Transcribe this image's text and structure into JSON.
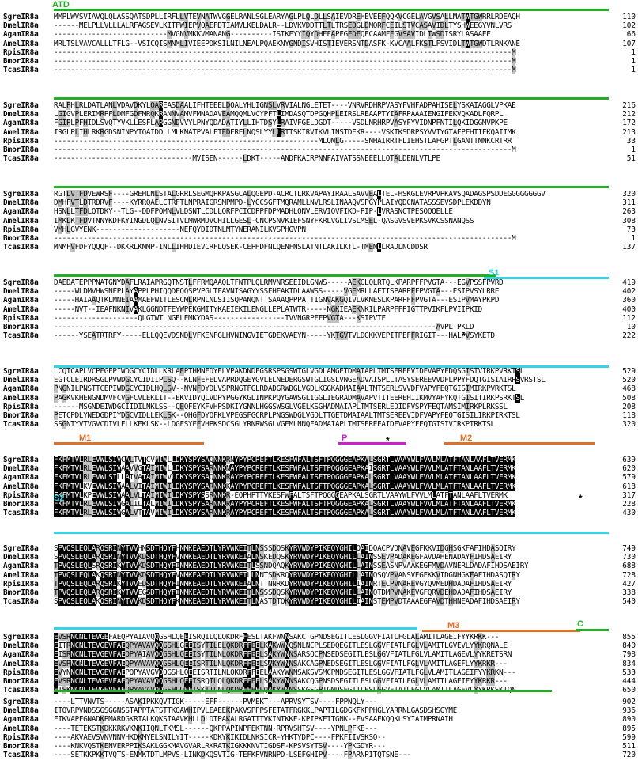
{
  "colors": {
    "green": "#22b022",
    "cyan": "#33d6e6",
    "orange": "#e0712a",
    "magenta": "#cc22cc",
    "black_box": "#000000",
    "gray_box": "#c0c0c0"
  },
  "domains": {
    "ATD": "ATD",
    "S1": "S1",
    "P": "P",
    "M1": "M1",
    "M2": "M2",
    "S2": "S2",
    "M3": "M3",
    "C": "C"
  },
  "star": "*",
  "blocks": [
    {
      "rows": [
        {
          "name": "SgreIR8a",
          "seq": "MMPLWVSVIAVQLQLASSQATSDPLLIRFLLVTEVNATWVGGELRANLSGLEARYAGLPLQLDLLSAIEVDREHEVEEFQQKVCGELAVGVSALLMATWTGWRRLRDEAQH",
          "num": "110"
        },
        {
          "name": "DmelIR8a",
          "seq": "------MELPLLVLLLALRFAGSEVLKITFWIEPVQAEFDTIAMVLKELDALR--LDVKVDDTTLTLTRSEDGLDMQRFCEILSTVCASAVIDLTYSHWEEGYVNLVRS",
          "num": "102"
        },
        {
          "name": "AgamIR8a",
          "seq": "---------------------------MVGNVMKKVMANANG----------ISIKEYYIQYDHEFAPFGEDEQFCAAMFEGVSAVIDLTWSDISRYLASAAEE",
          "num": "66"
        },
        {
          "name": "AmelIR8a",
          "seq": "MRLTSLVAVCALLLTFLG--VSICQISMNMLIVIEEPDKSILNILNEALPQAEKNYGNDISVHISTIEVERSNTDASFK-KVCAALFKSTLFSVIDLTWTGWDTLRNKANE",
          "num": "107"
        },
        {
          "name": "RpisIR8a",
          "seq": "-------------------------------------------------------------------------------------------------------------M",
          "num": "1"
        },
        {
          "name": "BmorIR8a",
          "seq": "-------------------------------------------------------------------------------------------------------------M",
          "num": "1"
        },
        {
          "name": "TcasIR8a",
          "seq": "-------------------------------------------------------------------------------------------------------------M",
          "num": "1"
        }
      ]
    },
    {
      "rows": [
        {
          "name": "SgreIR8a",
          "seq": "RALPHLRLDATLANLVDAVDKYLQAREASDAALIFHTEEELDQALYHLIGNSLVRVIALNGLETET----VNRVRDHRPVASYFVHFADPAHISELYSKAIAGGLVPKAE",
          "num": "216"
        },
        {
          "name": "DmelIR8a",
          "seq": "LGIGVPLERIMRPFLDMFGDFMRQKRANNVAMVFMNADAVEAMQQMLVCYPFTLIMDASQTDPGQHPLEIRSLREAAPTYIAFRPAAAIENGIFEKVQKADLFQRPL",
          "num": "212"
        },
        {
          "name": "AgamIR8a",
          "seq": "FGIPLPFHIDLSVQTYVKLLESFLARGGNDVVYLPNYQDADATIYLLIHTDSYLRAIVFGELDGDT-----VSDLNRHRPVASYFYVIDNPFNTILQKIDGGMVPKPE",
          "num": "172"
        },
        {
          "name": "AmelIR8a",
          "seq": "IRGLPLIHLRKRGDSNINPYIQAIDDLLMLKNATPVALFTEDERELNQSLYYLLRTTSKIRVIKVLINSTDEKR----VSKIKSDRPSYVVIYGTAEPFHTIFKQAIIMK",
          "num": "213"
        },
        {
          "name": "RpisIR8a",
          "seq": "---------------------------------------------------------------MLQNLG-----SNHAIRRTFLIEHSTLAFGPTLGANTTNNKCRTRR",
          "num": "33"
        },
        {
          "name": "BmorIR8a",
          "seq": "-------------------------------------------------------------------------------------------------------------M",
          "num": "1"
        },
        {
          "name": "TcasIR8a",
          "seq": "---------------------------------MVISEN------LDKT-----ANDFKAIRPNNFAIVATSSNEEELLQTALDENLVTLPE",
          "num": "51"
        }
      ]
    },
    {
      "rows": [
        {
          "name": "SgreIR8a",
          "seq": "RGTLVTFDVEWRSF----GREHLNLSTALGRRLSEGMQPKPASGCALQGEPD-ACRCTLRKVAPAYIRAALSAVVEALTEL-HSKGLEVRPVPKAVSQADAGSPSDDEGGGGGGGGV",
          "num": "320"
        },
        {
          "name": "DmelIR8a",
          "seq": "DMHFVTLDTRDRVF----KYRRQAELCTRFTLNPRAIGRSMPMPD-LYGCSGFTMQRAMLLNVLRSLINAAQVSPGYPLAIYQDCNATASSSEVSDPLEKDDYN",
          "num": "311"
        },
        {
          "name": "AgamIR8a",
          "seq": "HSNLLTFDLQTDKY--TLG--DDFPQMNLVLDSNTLCDLLQRFPCICDPPFDPMADHLQNVLERVIQVFIKD-PIP-LVRASNCTPESQQQELLE",
          "num": "263"
        },
        {
          "name": "AmelIR8a",
          "seq": "IMKLKTFDVTNNYKDFKYINGDLQLNVSITVLMWRMDVCHILLGESL-CNCPSNVKIEFSNYFKRLVGLIVSLMSEL-QASGVSVEPKSVKCSSNANQSS",
          "num": "308"
        },
        {
          "name": "RpisIR8a",
          "seq": "VMHLGVYENK--------------------NEFQYDIDTNLMTYNERANILKVSPHGVPN",
          "num": "73"
        },
        {
          "name": "BmorIR8a",
          "seq": "-------------------------------------------------------------------------------------------------------------M",
          "num": "1"
        },
        {
          "name": "TcasIR8a",
          "seq": "MNMFVFDFYQQQF--DKKRLKNMP-INLLIHHDIEVCRFLQSEK-CEPHDFNLQENFNSLATNTLAKILKTL-TMENLLRADLNCDDSR",
          "num": "137"
        }
      ]
    },
    {
      "rows": [
        {
          "name": "SgreIR8a",
          "seq": "DAEDATEPPPNATGNYDAFLRAIAPRGQTNSTLFFRMQAAQLTFNTPLQLRMVNRSEEIDLGNWS-----AEKGLQLRTQLKPARPFFPVGTA---EGVPSSFPVRD",
          "num": "419"
        },
        {
          "name": "DmelIR8a",
          "seq": "-----WLDMVHWSNFPLAYAPPLPHIQQDFQQSPVPGLTFAVNISAGYYSSEHEAKTDLAAWSS-----VGEMRLLAETISPARPFFPVGTA---ESIPVSYLRRE",
          "num": "402"
        },
        {
          "name": "AgamIR8a",
          "seq": "-----HAIAAQTKLMNEIAAMAEFWITLESCMLRPNLNLSIISQPANQNTTSAAAQPPPATTIGNVAKGQIVLVKNESLKPARPFFPVGTA---ESIPVMAYPKPD",
          "num": "360"
        },
        {
          "name": "AmelIR8a",
          "seq": "-----NVT--IEAFNKNIVAKLGGNDTFEYWPEKGMITYKAEIEKILENGLLEPLATWTR-----NGKIEAEKNKILPARPFFPIGTTPVIKFLPVIIPKID",
          "num": "400"
        },
        {
          "name": "RpisIR8a",
          "seq": "--------------------QLGTWTLNGELEMKYDAS-----------------TVVNGRPFFPVGTA---KSIPVTF",
          "num": "112"
        },
        {
          "name": "BmorIR8a",
          "seq": "-------------------------------------------------------------------------------------------AVPLTPKLD",
          "num": "10"
        },
        {
          "name": "TcasIR8a",
          "seq": "------YSEATRTRFY-----ELLQQEVDSNDLVFKENFGLHVNINGVIETGDEKVAEYN-----YKTGVTVLDGKKVEPITPEFFRIGIT---HALPVSYKETD",
          "num": "222"
        }
      ]
    },
    {
      "rows": [
        {
          "name": "SgreIR8a",
          "seq": "LCQTCAPLVCPEGEPIWDGCYCIDLLKRLAEPTHMNFDYELVPAKDNDFGSRSPSGSWTGLVGDLAMGETDMAIAPLTMTSEREEVIDFVAPYFDQSGISIVIRKPVRKTSL",
          "num": "529"
        },
        {
          "name": "DmelIR8a",
          "seq": "EGTCLEIRDRSGLPVWDGCYCIDIIPLSQ--KLNFEFELVAPRDQGEYGVLELNEDERGSWTGLIGSLVNGEADVAISPLLTASYSEREEVVDFLPPYFDQTGISIAIRPSVRSTSL",
          "num": "520"
        },
        {
          "name": "AgamIR8a",
          "seq": "PNGNILPNSTTCEPIWDGCYCIDLHQLSV--NVNFDYDLVSPRNGTFGLRDADGRWDGLVGDLKGGKADMAIAALTMTSERLSVVDFVAPYFEQTGISIMIRKPVRKTSL",
          "num": "468"
        },
        {
          "name": "AmelIR8a",
          "seq": "PAGKVKHENGNDMVFCVGFCVLEKLIT--EKVIDYQLVDPYPGGYKGLINPKPQYGAWSGLIGGLIEGRADMAVAPVTITEEREHIIKMVYAFYKQTGISITIRKPSRKTSL",
          "num": "508"
        },
        {
          "name": "RpisIR8a",
          "seq": "------MSGNDEIWDGCIIDILNKLSS--QEQFEYKFVHPSDKIYGNNLHGGSWSGLVGELKSGHADMAIAPLTMTSERLEDIDFVSPYFEQTAMSIMIRKPLRKSSL",
          "num": "208"
        },
        {
          "name": "BmorIR8a",
          "seq": "PETCPDLYNEDGDPIYDGCVIDLLEKLSK--QHGFDYQFKLVPEGSFGCRPLPNGSWDGLVGDLTTGETDMAIAALTMTSEREEVIDFVAPYFEQTGISILIRKPIRKTSL",
          "num": "118"
        },
        {
          "name": "TcasIR8a",
          "seq": "SSGNTYVTVGVCDIVLELLKEKLSK--LDGFSYEFVHPKSDCSGLYRNRWSGLVGEMLNNQEADMAIAPLTMTSEREEAIDFVAPYFEQTGISIVIRKPIRKTSL",
          "num": "320"
        }
      ]
    },
    {
      "rows": [
        {
          "name": "SgreIR8a",
          "seq": "FKFMTVLRLEVWLSIVCALTVTCVMIWLLDKYSPYSAQNNKRNYPYPCREFTLKESFWFALTSFTPQGGGEAPKALSGRTLVAAYWLFVVLMLATFTANLAAFLTVERMK",
          "num": "639"
        },
        {
          "name": "DmelIR8a",
          "seq": "FKFMTVLRLEVWLSIVAAVVGTAIMIWLLDKYSPYSARNNKNAYPYPCREFTLKESFWFALTSFTPQGGGEAPKAISGRTLVAAYWLFVVLMLATFTANLAAFLTVERMK",
          "num": "620"
        },
        {
          "name": "AgamIR8a",
          "seq": "FKFMTVLRLEVWLSILLAIVATAIMIWVLDKYSPYSAQNNKRAYPYPCREFTLKESFWFALTSFTPQGGGEAPKALSGRTLVAAYWLFVVLMLATFTANLAAFLTVERMK",
          "num": "579"
        },
        {
          "name": "AmelIR8a",
          "seq": "FKFMTVLKVEVWLSIVAALVITAIMIWILDKYSPYSARNNKKAYPYPCREFTLKESFWFALTSFTPQGGGEAPKALSGRTLVAAYWLFVVLMLATFTANLAAFLTVERMK",
          "num": "618"
        },
        {
          "name": "RpisIR8a",
          "seq": "FKFMTVLKPEVWLSIVAALVLTAIMIWILDKYSPYSSRNNKR-EQPHPTTVKESFWFALTSFTPQGGGEAPKALSGRTLVAAYWLFVVLMLATFTANLAAFLTVERMK",
          "num": "317"
        },
        {
          "name": "BmorIR8a",
          "seq": "FKFMTVLRLEVWLSIVGALILTALMIWILDKYSPYSARNNKRAYPYPCREFTLKESFWFALTSFTPQGGGEAPKALSGRTLVAAYWLFVVLMLATFTANLAAFLTVERMK",
          "num": "228"
        },
        {
          "name": "TcasIR8a",
          "seq": "FKFMTVLRLEVWLSIVGALVTTAVMIWILDKYSPYSARNNKRAYPYPCREFTLKESFWFALTSFTPQGGGEAPKALSGRTLVAAYWLFVVLMLATFTANLAAFLTVERMK",
          "num": "430"
        }
      ]
    },
    {
      "rows": [
        {
          "name": "SgreIR8a",
          "seq": "SPVQSLEQLARQSRINYTVVHNSDTHQYFHNMKEAEDTLYRVWKEITLNSSSDQSKYRVWDYPIKEQYGHILQAIDQACPVDNAVEGFKKVIDGHSGKFAFIHDASQIRY",
          "num": "749"
        },
        {
          "name": "DmelIR8a",
          "seq": "SPVQSLEQLARQSRINYTVVKDSDTHQYFVNMKEAEDTLYRVWKEIALNSKEDQSKYRVWDYPIKEQYGHILLAINSSEVPADAKEGFAVDAHENADAYFIHDSAEIRY",
          "num": "730"
        },
        {
          "name": "AgamIR8a",
          "seq": "TPVQSLEQLSRQSRIKYTVVKDSDTHQYFINMKEAEDTLYRVWKEITLSSNDQAQKYRVWDYPIKEQYGHILLAINSSEASNPVAAKEGFMVDAVNERLDADAFIHDSAEIRY",
          "num": "688"
        },
        {
          "name": "AmelIR8a",
          "seq": "TPVQSLEQLAKQSRINYTVVKDSDTHQYFVNMKEAEDTLYRVWKEILLNNTSDKRQYRVWDYPIKEQYGHILLAINQSQVPVANSVEGFKKVIDGNHGKFAFIHDASQIRY",
          "num": "728"
        },
        {
          "name": "RpisIR8a",
          "seq": "TPVQSLEQLARQSRIKYTVVEDSDTHQYFINMKEAEDTLYRVWKEIALNTTNNRKDYRVWDYPIKEQYGHILIAINRTECPVNAREVGYQVMEDHDADAFIHDSAEIRY",
          "num": "427"
        },
        {
          "name": "BmorIR8a",
          "seq": "TPVQSLEQLARQSRIKYTVVEGSDTHQYFINMKEAEDTLYRVWKEITLNSSSDQSKYRVWDYPIKEQYGHILLAINQTDMPVNAKEVGFQRVDEHDADAFIHDSAEIRY",
          "num": "338"
        },
        {
          "name": "TcasIR8a",
          "seq": "SPVQSLEQLAKQSRINYTVVKDSDTHQYFKNMKEAEDTLYRVWKEITLNASTDTQKYRVWDYPIKEQYGHILIAINSTEMPVDTAAAEGFAVDTHHNEADAFIHDSAEIRY",
          "num": "540"
        }
      ]
    },
    {
      "rows": [
        {
          "name": "SgreIR8a",
          "seq": "EVSRNCNLTEVGEFAEQPYAIAVQQGSHLQEEISRQILQLQKDRFFESLTAKFWNNSAKCTGPNDSEGITLESLGGVFIATLFGLALAMITLAGEIFYYKRKK---",
          "num": "855"
        },
        {
          "name": "DmelIR8a",
          "seq": "EITRNCNLTEVGEVFAEQPYAVAVQQGSHLGEEISYTILELQKDRFFEELKAKWWNQSNLNCPLSEDQEGITLESLGGVFIATLFGLVLAMITLGVEVLYYKRQNALE",
          "num": "840"
        },
        {
          "name": "AgamIR8a",
          "seq": "EISRNCNLTEVGEVFAEQPYAIAVQQGSHLQEEISYTILNLQKDRFFEELSAKYWNNSARSQCPNSEDSEGITLESLGGVFIATLFGLVLAMITLAGEVLYYKRETSRN",
          "num": "798"
        },
        {
          "name": "AmelIR8a",
          "seq": "EVSRNCNLTEVGEVFAEQPYAVAVQQGSHLQEEISRTILNLQKDRFFEELSAKYWNNSAKCAGPNEDSEGITLESLGGVFIATLFGLVLAMITLAGEFLYYKRKR---",
          "num": "834"
        },
        {
          "name": "RpisIR8a",
          "seq": "EVYNNCNLTEVGEVFAEPQPYAVGVQQGSHLQEEISRTILNLQKDRFFEELAAKYWNNSAKSVSMCPNDSEGITLESLGGVFIATLFGLVLAMITLAGEIFYYKRKN---",
          "num": "533"
        },
        {
          "name": "BmorIR8a",
          "seq": "EVSRNCNLTEVGEVFAEQPYAVAVQQGSHLQEEISRQILQLQKDRFFEELSAKYWNNSAKCQGPNSDSEGITLESLGGVFIATLFGLVLAMITLAGEIFYYKRKR---",
          "num": "444"
        },
        {
          "name": "TcasIR8a",
          "seq": "EISKNCNLTEVGEVFAEQPYAVAVQQGSHLQEEISKTILNLQKDRFFEELQAKYWNNSSKGSGPTGNDSEGITLESLGGVFIATLFGLVLAMITLAGEVLYYKRKSKIQN",
          "num": "650"
        }
      ]
    },
    {
      "rows": [
        {
          "name": "SgreIR8a",
          "seq": "----LTTVNVTS-----ASAKIPKKQVTIGK-----EFF------PVMEKT---APRVSYTSV----FPPNQLY---",
          "num": "902"
        },
        {
          "name": "DmelIR8a",
          "seq": "ITQVRPVNDSSGSGGNSSTAPPTATSTTKQAWHIPVLEAEEKPAKVSPPPSFETATFRGKKLPAPTILGDGKFKPPHGLYARRNLGASDSHSGYME",
          "num": "936"
        },
        {
          "name": "AgamIR8a",
          "seq": "FIKVAPFGNADKPMARDGKRIALKQKSIAAVKHLLDLDTPAKALRGATTTVKINTKKE-KPIPKEITGNK--FVSAAEKQQKLSYIAIMPRNAIH",
          "num": "890"
        },
        {
          "name": "AmelIR8a",
          "seq": "----TETEKSTKDKKRKVKNKIIQNLTKMSL------QKPPAPINPFEKTNN-RPRVSHTSV----YPNLPFKE---",
          "num": "895"
        },
        {
          "name": "RpisIR8a",
          "seq": "----AKVAEVSVNVNNVHKDKMYELSNILYIT-----KDKYKIKIDLNKSICR-YHKTYDPC----FPKFIIVSKSQ--",
          "num": "599"
        },
        {
          "name": "BmorIR8a",
          "seq": "----KNKVQSTKENVERPPIKSAKLGGKMAVGVARLRKRATKIGKKKNVTIGDSF-KPSVSYTSV----YPKGDYR---",
          "num": "511"
        },
        {
          "name": "TcasIR8a",
          "seq": "----SETKKPKKTVQTS-ENMKTDTLMPVS-LINKDKQSVTIG-TEFKPVNRNPD-LSEFGHIPV----FPARNPITQTSNE---",
          "num": "720"
        }
      ]
    }
  ]
}
